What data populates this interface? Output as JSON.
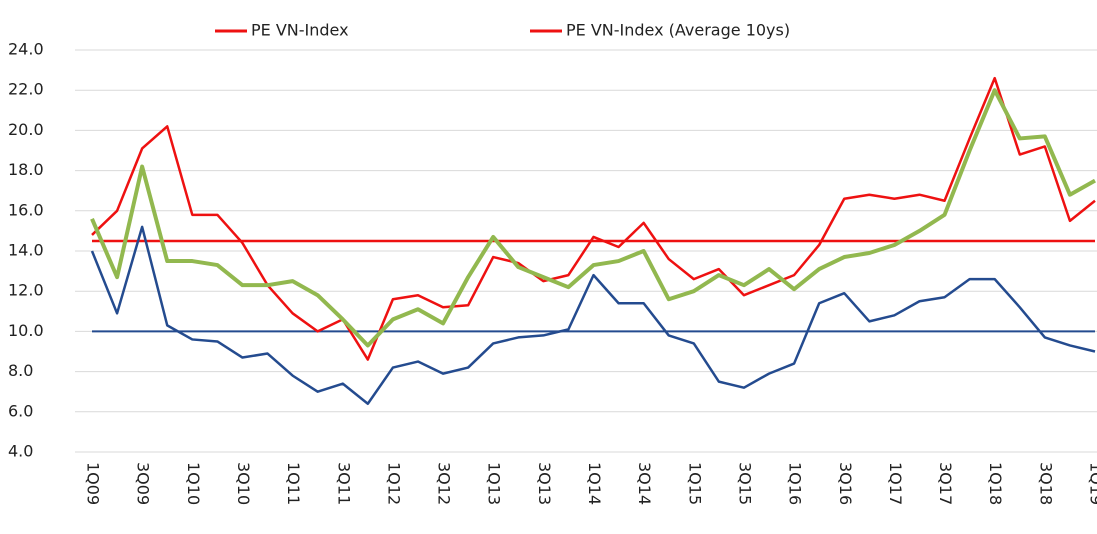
{
  "chart_data": {
    "type": "line",
    "categories": [
      "1Q09",
      null,
      "3Q09",
      null,
      "1Q10",
      null,
      "3Q10",
      null,
      "1Q11",
      null,
      "3Q11",
      null,
      "1Q12",
      null,
      "3Q12",
      null,
      "1Q13",
      null,
      "3Q13",
      null,
      "1Q14",
      null,
      "3Q14",
      null,
      "1Q15",
      null,
      "3Q15",
      null,
      "1Q16",
      null,
      "3Q16",
      null,
      "1Q17",
      null,
      "3Q17",
      null,
      "1Q18",
      null,
      "3Q18",
      null,
      "1Q19"
    ],
    "series": [
      {
        "color": "#244b8f",
        "values": [
          10,
          10,
          10,
          10,
          10,
          10,
          10,
          10,
          10,
          10,
          10,
          10,
          10,
          10,
          10,
          10,
          10,
          10,
          10,
          10,
          10,
          10,
          10,
          10,
          10,
          10,
          10,
          10,
          10,
          10,
          10,
          10,
          10,
          10,
          10,
          10,
          10,
          10,
          10,
          10,
          10
        ]
      },
      {
        "name": "PE VN-Index (Average 10ys)",
        "color": "#ee1111",
        "values": [
          14.5,
          14.5,
          14.5,
          14.5,
          14.5,
          14.5,
          14.5,
          14.5,
          14.5,
          14.5,
          14.5,
          14.5,
          14.5,
          14.5,
          14.5,
          14.5,
          14.5,
          14.5,
          14.5,
          14.5,
          14.5,
          14.5,
          14.5,
          14.5,
          14.5,
          14.5,
          14.5,
          14.5,
          14.5,
          14.5,
          14.5,
          14.5,
          14.5,
          14.5,
          14.5,
          14.5,
          14.5,
          14.5,
          14.5,
          14.5,
          14.5
        ]
      },
      {
        "color": "#244b8f",
        "values": [
          14.0,
          10.9,
          15.2,
          10.3,
          9.6,
          9.5,
          8.7,
          8.9,
          7.8,
          7.0,
          7.4,
          6.4,
          8.2,
          8.5,
          7.9,
          8.2,
          9.4,
          9.7,
          9.8,
          10.1,
          12.8,
          11.4,
          11.4,
          9.8,
          9.4,
          7.5,
          7.2,
          7.9,
          8.4,
          11.4,
          11.9,
          10.5,
          10.8,
          11.5,
          11.7,
          12.6,
          12.6,
          11.2,
          9.7,
          9.3,
          9.0
        ]
      },
      {
        "name": "PE VN-Index",
        "color": "#ee1111",
        "values": [
          14.8,
          16.0,
          19.1,
          20.2,
          15.8,
          15.8,
          14.4,
          12.3,
          10.9,
          10.0,
          10.6,
          8.6,
          11.6,
          11.8,
          11.2,
          11.3,
          13.7,
          13.4,
          12.5,
          12.8,
          14.7,
          14.2,
          15.4,
          13.6,
          12.6,
          13.1,
          11.8,
          12.3,
          12.8,
          14.3,
          16.6,
          16.8,
          16.6,
          16.8,
          16.5,
          19.6,
          22.6,
          18.8,
          19.2,
          15.5,
          16.5
        ]
      },
      {
        "color": "#92b84f",
        "values": [
          15.6,
          12.7,
          18.2,
          13.5,
          13.5,
          13.3,
          12.3,
          12.3,
          12.5,
          11.8,
          10.6,
          9.3,
          10.6,
          11.1,
          10.4,
          12.7,
          14.7,
          13.2,
          12.7,
          12.2,
          13.3,
          13.5,
          14.0,
          11.6,
          12.0,
          12.8,
          12.3,
          13.1,
          12.1,
          13.1,
          13.7,
          13.9,
          14.3,
          15.0,
          15.8,
          19.0,
          22.0,
          19.6,
          19.7,
          16.8,
          17.5
        ]
      }
    ],
    "legend_order": [
      3,
      1
    ],
    "ylim": [
      4,
      24
    ],
    "yticks": [
      {
        "value": 4,
        "label": "4.0"
      },
      {
        "value": 6,
        "label": "6.0"
      },
      {
        "value": 8,
        "label": "8.0"
      },
      {
        "value": 10,
        "label": "10.0"
      },
      {
        "value": 12,
        "label": "12.0"
      },
      {
        "value": 14,
        "label": "14.0"
      },
      {
        "value": 16,
        "label": "16.0"
      },
      {
        "value": 18,
        "label": "18.0"
      },
      {
        "value": 20,
        "label": "20.0"
      },
      {
        "value": 22,
        "label": "22.0"
      },
      {
        "value": 24,
        "label": "24.0"
      }
    ],
    "grid": true
  }
}
